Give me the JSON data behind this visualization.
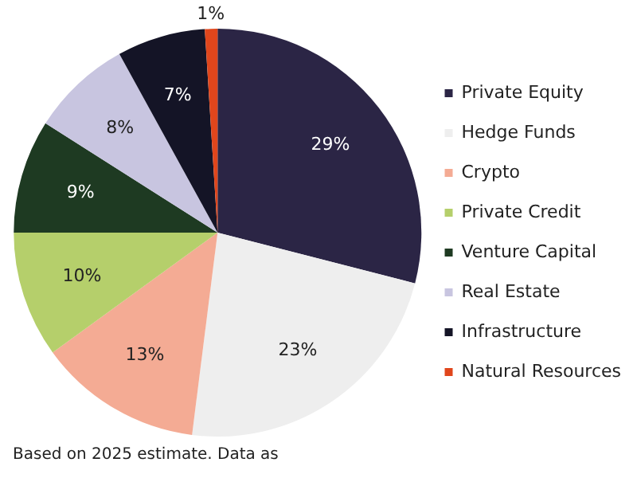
{
  "chart_data": {
    "type": "pie",
    "categories": [
      "Private Equity",
      "Hedge Funds",
      "Crypto",
      "Private Credit",
      "Venture Capital",
      "Real Estate",
      "Infrastructure",
      "Natural Resources"
    ],
    "values": [
      29,
      23,
      13,
      10,
      9,
      8,
      7,
      1
    ],
    "colors": [
      "#2b2545",
      "#eeeeee",
      "#f4ab94",
      "#b5cf6b",
      "#1e3a22",
      "#c8c5e0",
      "#141426",
      "#e0461c"
    ],
    "value_labels": [
      "29%",
      "23%",
      "13%",
      "10%",
      "9%",
      "8%",
      "7%",
      "1%"
    ],
    "legend": "right",
    "annotations": [
      "Based on 2025 estimate. Data as"
    ]
  }
}
